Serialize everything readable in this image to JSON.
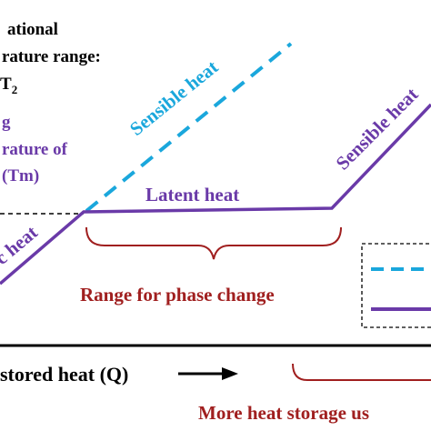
{
  "colors": {
    "sensible_dashed": "#1aa7dc",
    "latent_solid": "#6a3aa8",
    "sensible_label": "#1aa7dc",
    "melting_label": "#6a3aa8",
    "bracket_red": "#a01f1f",
    "axis": "#000000",
    "text_black": "#000000"
  },
  "labels": {
    "operational_line1": "ational",
    "operational_line2": "rature range:",
    "operational_line3": "T",
    "operational_subscript": "2",
    "melting_line1": "g",
    "melting_line2": "rature of",
    "melting_line3": "(Tm)",
    "sensible_heat_dashed": "Sensible heat",
    "sensible_heat_right": "Sensible heat",
    "latent_heat": "Latent heat",
    "sensible_heat_left": "c heat",
    "range_phase_change": "Range for phase change",
    "x_axis_label": "stored heat (Q)",
    "more_heat_storage": "More heat storage us"
  }
}
